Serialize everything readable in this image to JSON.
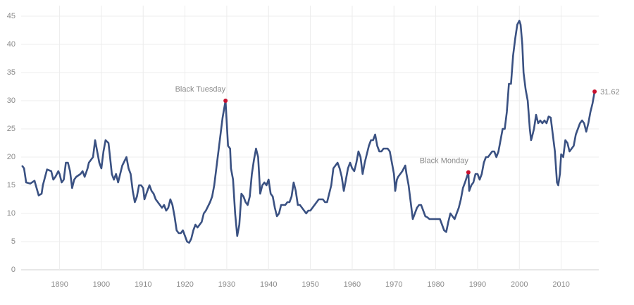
{
  "chart_data": {
    "type": "line",
    "x": [
      1881,
      1881.5,
      1882,
      1883,
      1884,
      1884.5,
      1885,
      1885.7,
      1886,
      1887,
      1888,
      1888.5,
      1889,
      1889.7,
      1890,
      1890.5,
      1891,
      1891.5,
      1892,
      1892.5,
      1893,
      1893.5,
      1894,
      1895,
      1895.5,
      1896,
      1896.7,
      1897,
      1898,
      1898.5,
      1899,
      1899.5,
      1900,
      1900.5,
      1901,
      1901.7,
      1902,
      1902.5,
      1903,
      1903.5,
      1904,
      1905,
      1906,
      1906.5,
      1907,
      1907.5,
      1908,
      1908.5,
      1909,
      1909.5,
      1910,
      1910.3,
      1911,
      1911.5,
      1912,
      1912.5,
      1913,
      1914,
      1914.5,
      1915,
      1915.5,
      1916,
      1916.5,
      1917,
      1917.5,
      1918,
      1918.5,
      1919,
      1919.5,
      1920,
      1920.5,
      1921,
      1921.5,
      1922,
      1922.5,
      1923,
      1923.5,
      1924,
      1924.5,
      1925,
      1926,
      1926.5,
      1927,
      1927.5,
      1928,
      1928.5,
      1929,
      1929.7,
      1930,
      1930.3,
      1930.8,
      1931,
      1931.5,
      1932,
      1932.5,
      1933,
      1933.5,
      1934,
      1934.5,
      1935,
      1935.5,
      1936,
      1936.5,
      1937,
      1937.5,
      1938,
      1938.5,
      1939,
      1939.5,
      1940,
      1940.5,
      1941,
      1941.5,
      1942,
      1942.5,
      1943,
      1943.5,
      1944,
      1944.5,
      1945,
      1945.5,
      1946,
      1946.5,
      1947,
      1947.5,
      1948,
      1948.5,
      1949,
      1949.5,
      1950,
      1950.5,
      1951,
      1951.5,
      1952,
      1953,
      1953.5,
      1954,
      1954.5,
      1955,
      1955.5,
      1956,
      1956.5,
      1957,
      1957.5,
      1958,
      1958.5,
      1959,
      1959.5,
      1960,
      1960.5,
      1961,
      1961.5,
      1962,
      1962.5,
      1963,
      1963.5,
      1964,
      1964.5,
      1965,
      1965.5,
      1966,
      1966.5,
      1967,
      1967.5,
      1968,
      1968.5,
      1969,
      1969.5,
      1970,
      1970.3,
      1970.7,
      1971,
      1971.5,
      1972,
      1972.7,
      1973,
      1973.5,
      1974,
      1974.5,
      1975,
      1975.5,
      1976,
      1976.5,
      1977,
      1977.5,
      1978,
      1978.5,
      1979,
      1979.5,
      1980,
      1980.5,
      1981,
      1981.5,
      1982,
      1982.5,
      1983,
      1983.5,
      1984,
      1984.5,
      1985,
      1985.5,
      1986,
      1986.5,
      1987,
      1987.8,
      1988,
      1988.5,
      1989,
      1989.5,
      1990,
      1990.5,
      1991,
      1991.5,
      1992,
      1992.5,
      1993,
      1993.5,
      1994,
      1994.5,
      1995,
      1995.5,
      1996,
      1996.5,
      1997,
      1997.5,
      1998,
      1998.5,
      1999,
      1999.5,
      2000,
      2000.3,
      2000.7,
      2001,
      2001.5,
      2002,
      2002.5,
      2002.8,
      2003,
      2003.5,
      2004,
      2004.5,
      2005,
      2005.5,
      2006,
      2006.5,
      2007,
      2007.5,
      2008,
      2008.5,
      2009,
      2009.3,
      2009.7,
      2010,
      2010.5,
      2011,
      2011.5,
      2012,
      2012.5,
      2013,
      2013.5,
      2014,
      2014.5,
      2015,
      2015.5,
      2016,
      2016.5,
      2017,
      2017.5,
      2018
    ],
    "values": [
      18.5,
      18,
      15.5,
      15.3,
      15.8,
      14.5,
      13.2,
      13.5,
      15,
      17.8,
      17.5,
      16,
      16.5,
      17.5,
      17,
      15.5,
      16,
      19,
      19,
      17.5,
      14.5,
      16,
      16.5,
      17,
      17.5,
      16.5,
      18,
      19,
      20,
      23,
      21,
      19,
      18,
      21,
      23,
      22.5,
      20.5,
      17,
      16,
      17,
      15.5,
      18.5,
      20,
      18,
      17,
      14,
      12,
      13,
      15,
      15,
      14.5,
      12.5,
      14,
      15,
      14,
      13.5,
      12.5,
      11.5,
      11,
      11.5,
      10.5,
      11,
      12.5,
      11.5,
      9.5,
      7,
      6.5,
      6.5,
      7,
      6,
      5,
      4.8,
      5.5,
      7,
      8,
      7.5,
      8,
      8.5,
      10,
      10.5,
      12,
      13,
      15,
      18,
      21,
      24,
      27,
      30,
      26,
      22,
      21.5,
      18,
      16,
      10,
      6,
      8,
      13.5,
      13,
      12,
      11.5,
      13,
      17,
      19.5,
      21.5,
      20,
      13.5,
      15,
      15.5,
      15,
      16,
      13.5,
      13,
      11,
      9.5,
      10,
      11.5,
      11.5,
      11.5,
      12,
      12,
      13,
      15.5,
      14,
      11.5,
      11.5,
      11,
      10.5,
      10,
      10.5,
      10.5,
      11,
      11.5,
      12,
      12.5,
      12.5,
      12,
      12,
      13.5,
      15,
      18,
      18.5,
      19,
      18,
      16.5,
      14,
      16,
      18,
      19,
      18,
      17.5,
      19,
      21,
      20,
      17,
      19,
      20.5,
      22,
      23,
      23,
      24,
      22,
      21,
      21,
      21.5,
      21.5,
      21.5,
      21,
      19,
      17,
      14,
      16,
      16.5,
      17,
      17.5,
      18.5,
      17,
      15,
      12,
      9,
      10,
      11,
      11.5,
      11.5,
      10.5,
      9.5,
      9.3,
      9,
      9,
      9,
      9,
      9,
      9,
      8,
      7,
      6.7,
      8.5,
      10,
      9.5,
      9,
      10,
      11,
      12.5,
      14.5,
      15.5,
      17.3,
      14,
      15,
      15.5,
      17,
      17,
      16,
      17,
      19,
      20,
      20,
      20.5,
      21,
      21,
      20,
      21,
      23,
      25,
      25,
      28,
      33,
      33,
      38,
      41,
      43.5,
      44.2,
      43.5,
      40,
      35,
      32,
      30,
      25,
      23,
      23.5,
      25,
      27.5,
      26,
      26.5,
      26,
      26.5,
      26,
      27.2,
      27,
      24,
      21,
      15.5,
      15,
      17,
      20.5,
      20,
      23,
      22.5,
      21,
      21.5,
      22,
      24,
      25,
      26,
      26.5,
      26,
      24.5,
      26,
      28,
      29.5,
      31.62
    ],
    "color": "#3a5182",
    "xlim": [
      1880.8,
      2019
    ],
    "ylim": [
      0,
      45
    ],
    "xticks": [
      1890,
      1900,
      1910,
      1920,
      1930,
      1940,
      1950,
      1960,
      1970,
      1980,
      1990,
      2000,
      2010
    ],
    "yticks": [
      0,
      5,
      10,
      15,
      20,
      25,
      30,
      35,
      40,
      45
    ],
    "grid": true,
    "annotations": [
      {
        "label": "Black Tuesday",
        "x": 1929.7,
        "y": 30
      },
      {
        "label": "Black Monday",
        "x": 1987.8,
        "y": 17.3
      },
      {
        "x": 2018,
        "y": 31.62
      }
    ],
    "marker_color": "#c8102e"
  }
}
